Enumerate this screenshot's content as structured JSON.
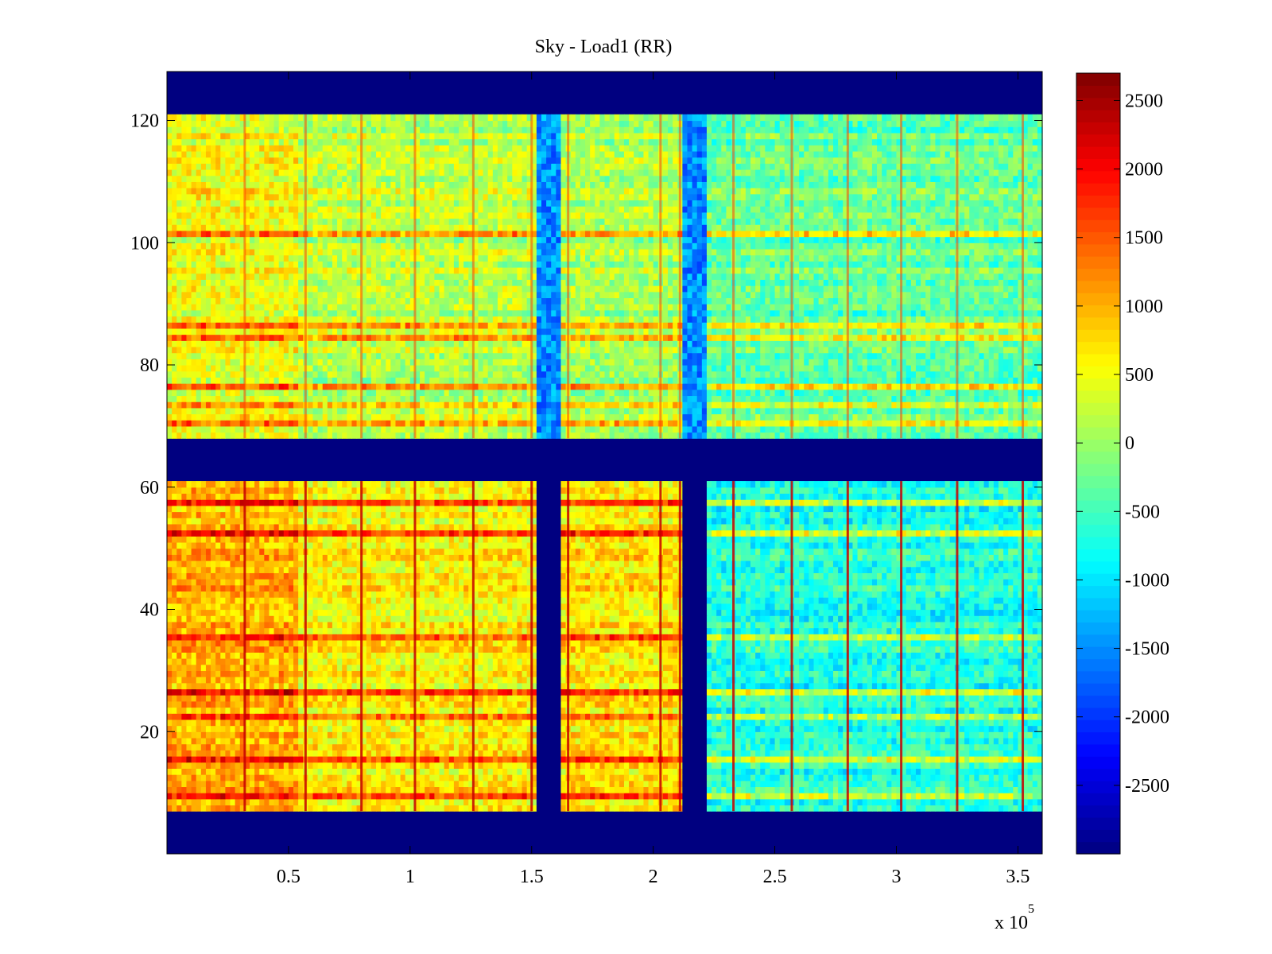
{
  "chart_data": {
    "type": "heatmap",
    "title": "Sky - Load1 (RR)",
    "xlabel": "",
    "ylabel": "",
    "x_multiplier_label": "x 10",
    "x_multiplier_exponent": "5",
    "xlim": [
      0,
      3.6
    ],
    "ylim": [
      0,
      128
    ],
    "x_ticks": [
      0.5,
      1,
      1.5,
      2,
      2.5,
      3,
      3.5
    ],
    "x_tick_labels": [
      "0.5",
      "1",
      "1.5",
      "2",
      "2.5",
      "3",
      "3.5"
    ],
    "y_ticks": [
      20,
      40,
      60,
      80,
      100,
      120
    ],
    "y_tick_labels": [
      "20",
      "40",
      "60",
      "80",
      "100",
      "120"
    ],
    "colormap": "jet",
    "colorbar": {
      "range": [
        -3000,
        2700
      ],
      "ticks": [
        2500,
        2000,
        1500,
        1000,
        500,
        0,
        -500,
        -1000,
        -1500,
        -2000,
        -2500
      ],
      "tick_labels": [
        "2500",
        "2000",
        "1500",
        "1000",
        "500",
        "0",
        "-500",
        "-1000",
        "-1500",
        "-2000",
        "-2500"
      ],
      "placement": "right"
    },
    "background_value": -3000,
    "masked_rows": [
      [
        0,
        7
      ],
      [
        61,
        68
      ],
      [
        121,
        128
      ]
    ],
    "data_row_blocks": [
      [
        7,
        61
      ],
      [
        68,
        121
      ]
    ],
    "masked_column_gaps_lower": [
      [
        1.52,
        1.62
      ],
      [
        2.12,
        2.23
      ]
    ],
    "dip_columns_upper": [
      [
        1.52,
        1.62
      ],
      [
        2.12,
        2.23
      ]
    ],
    "x_segments": [
      {
        "x_range": [
          0,
          0.55
        ],
        "lower_value": 1000,
        "upper_value": 500
      },
      {
        "x_range": [
          0.55,
          1.52
        ],
        "lower_value": 600,
        "upper_value": 200
      },
      {
        "x_range": [
          1.62,
          2.12
        ],
        "lower_value": 700,
        "upper_value": 100
      },
      {
        "x_range": [
          2.23,
          3.6
        ],
        "lower_value": -700,
        "upper_value": -300
      }
    ],
    "hot_columns": [
      0.32,
      0.57,
      0.8,
      1.02,
      1.26,
      1.5,
      1.65,
      2.03,
      2.11,
      2.33,
      2.57,
      2.8,
      3.02,
      3.25,
      3.52
    ],
    "hot_rows": [
      9,
      15,
      22,
      26,
      35,
      52,
      57,
      70,
      73,
      76,
      84,
      86,
      101
    ]
  }
}
